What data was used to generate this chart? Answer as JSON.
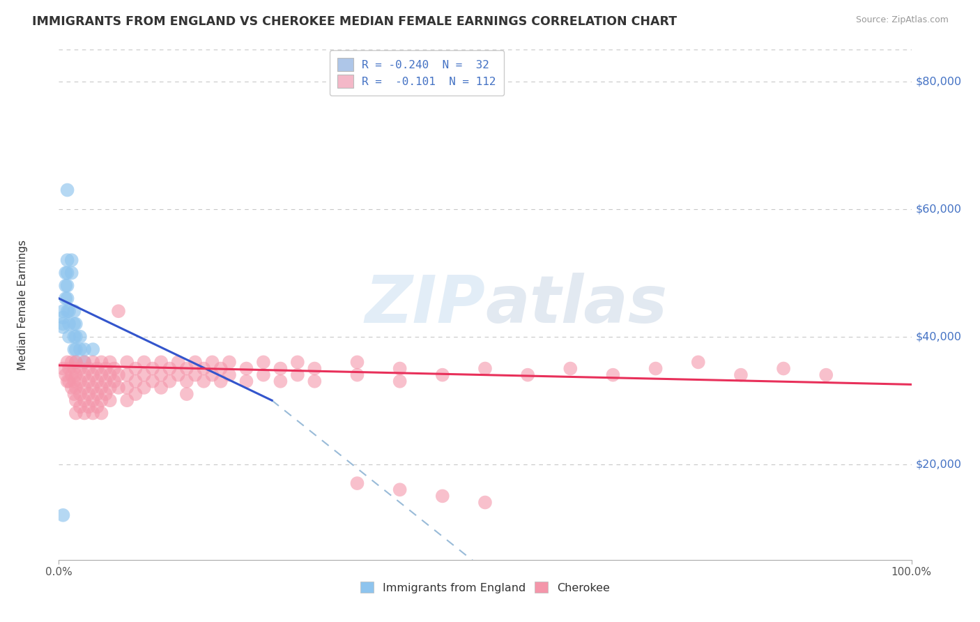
{
  "title": "IMMIGRANTS FROM ENGLAND VS CHEROKEE MEDIAN FEMALE EARNINGS CORRELATION CHART",
  "source": "Source: ZipAtlas.com",
  "ylabel": "Median Female Earnings",
  "xlim": [
    0.0,
    1.0
  ],
  "ylim": [
    5000,
    85000
  ],
  "yticks": [
    20000,
    40000,
    60000,
    80000
  ],
  "ytick_labels": [
    "$20,000",
    "$40,000",
    "$60,000",
    "$80,000"
  ],
  "xtick_labels": [
    "0.0%",
    "100.0%"
  ],
  "legend_entries": [
    {
      "label": "R = -0.240  N =  32",
      "color": "#aec6e8"
    },
    {
      "label": "R =  -0.101  N = 112",
      "color": "#f4b8c8"
    }
  ],
  "watermark": "ZIPatlas",
  "background_color": "#ffffff",
  "grid_color": "#c8c8c8",
  "blue_dot_color": "#8ec4ee",
  "pink_dot_color": "#f496aa",
  "blue_line_color": "#3355cc",
  "pink_line_color": "#e8305a",
  "dashed_line_color": "#99bbd8",
  "title_color": "#333333",
  "ylabel_color": "#333333",
  "ytick_color": "#4472c4",
  "source_color": "#999999",
  "blue_line_x": [
    0.0,
    0.25
  ],
  "blue_line_y": [
    46000,
    30000
  ],
  "dashed_line_x": [
    0.25,
    0.55
  ],
  "dashed_line_y": [
    30000,
    -2000
  ],
  "pink_line_x": [
    0.0,
    1.0
  ],
  "pink_line_y": [
    35500,
    32500
  ],
  "blue_dots": [
    [
      0.005,
      44000
    ],
    [
      0.005,
      43000
    ],
    [
      0.005,
      42000
    ],
    [
      0.005,
      41500
    ],
    [
      0.008,
      50000
    ],
    [
      0.008,
      48000
    ],
    [
      0.008,
      46000
    ],
    [
      0.01,
      52000
    ],
    [
      0.01,
      50000
    ],
    [
      0.01,
      48000
    ],
    [
      0.01,
      46000
    ],
    [
      0.01,
      44000
    ],
    [
      0.012,
      44000
    ],
    [
      0.012,
      42000
    ],
    [
      0.012,
      40000
    ],
    [
      0.015,
      52000
    ],
    [
      0.015,
      50000
    ],
    [
      0.018,
      44000
    ],
    [
      0.018,
      42000
    ],
    [
      0.018,
      40000
    ],
    [
      0.018,
      38000
    ],
    [
      0.02,
      42000
    ],
    [
      0.02,
      40000
    ],
    [
      0.02,
      38000
    ],
    [
      0.02,
      36000
    ],
    [
      0.025,
      40000
    ],
    [
      0.025,
      38000
    ],
    [
      0.03,
      38000
    ],
    [
      0.03,
      36000
    ],
    [
      0.04,
      38000
    ],
    [
      0.005,
      12000
    ],
    [
      0.01,
      63000
    ]
  ],
  "pink_dots": [
    [
      0.005,
      35000
    ],
    [
      0.008,
      34000
    ],
    [
      0.01,
      36000
    ],
    [
      0.01,
      33000
    ],
    [
      0.012,
      35000
    ],
    [
      0.012,
      33000
    ],
    [
      0.015,
      36000
    ],
    [
      0.015,
      34000
    ],
    [
      0.015,
      32000
    ],
    [
      0.018,
      35000
    ],
    [
      0.018,
      33000
    ],
    [
      0.018,
      31000
    ],
    [
      0.02,
      36000
    ],
    [
      0.02,
      34000
    ],
    [
      0.02,
      32000
    ],
    [
      0.02,
      30000
    ],
    [
      0.02,
      28000
    ],
    [
      0.025,
      35000
    ],
    [
      0.025,
      33000
    ],
    [
      0.025,
      31000
    ],
    [
      0.025,
      29000
    ],
    [
      0.03,
      36000
    ],
    [
      0.03,
      34000
    ],
    [
      0.03,
      32000
    ],
    [
      0.03,
      30000
    ],
    [
      0.03,
      28000
    ],
    [
      0.035,
      35000
    ],
    [
      0.035,
      33000
    ],
    [
      0.035,
      31000
    ],
    [
      0.035,
      29000
    ],
    [
      0.04,
      36000
    ],
    [
      0.04,
      34000
    ],
    [
      0.04,
      32000
    ],
    [
      0.04,
      30000
    ],
    [
      0.04,
      28000
    ],
    [
      0.045,
      35000
    ],
    [
      0.045,
      33000
    ],
    [
      0.045,
      31000
    ],
    [
      0.045,
      29000
    ],
    [
      0.05,
      36000
    ],
    [
      0.05,
      34000
    ],
    [
      0.05,
      32000
    ],
    [
      0.05,
      30000
    ],
    [
      0.05,
      28000
    ],
    [
      0.055,
      35000
    ],
    [
      0.055,
      33000
    ],
    [
      0.055,
      31000
    ],
    [
      0.06,
      36000
    ],
    [
      0.06,
      34000
    ],
    [
      0.06,
      32000
    ],
    [
      0.06,
      30000
    ],
    [
      0.065,
      35000
    ],
    [
      0.065,
      33000
    ],
    [
      0.07,
      44000
    ],
    [
      0.07,
      34000
    ],
    [
      0.07,
      32000
    ],
    [
      0.08,
      36000
    ],
    [
      0.08,
      34000
    ],
    [
      0.08,
      32000
    ],
    [
      0.08,
      30000
    ],
    [
      0.09,
      35000
    ],
    [
      0.09,
      33000
    ],
    [
      0.09,
      31000
    ],
    [
      0.1,
      36000
    ],
    [
      0.1,
      34000
    ],
    [
      0.1,
      32000
    ],
    [
      0.11,
      35000
    ],
    [
      0.11,
      33000
    ],
    [
      0.12,
      36000
    ],
    [
      0.12,
      34000
    ],
    [
      0.12,
      32000
    ],
    [
      0.13,
      35000
    ],
    [
      0.13,
      33000
    ],
    [
      0.14,
      36000
    ],
    [
      0.14,
      34000
    ],
    [
      0.15,
      35000
    ],
    [
      0.15,
      33000
    ],
    [
      0.15,
      31000
    ],
    [
      0.16,
      36000
    ],
    [
      0.16,
      34000
    ],
    [
      0.17,
      35000
    ],
    [
      0.17,
      33000
    ],
    [
      0.18,
      36000
    ],
    [
      0.18,
      34000
    ],
    [
      0.19,
      35000
    ],
    [
      0.19,
      33000
    ],
    [
      0.2,
      36000
    ],
    [
      0.2,
      34000
    ],
    [
      0.22,
      35000
    ],
    [
      0.22,
      33000
    ],
    [
      0.24,
      36000
    ],
    [
      0.24,
      34000
    ],
    [
      0.26,
      35000
    ],
    [
      0.26,
      33000
    ],
    [
      0.28,
      36000
    ],
    [
      0.28,
      34000
    ],
    [
      0.3,
      35000
    ],
    [
      0.3,
      33000
    ],
    [
      0.35,
      36000
    ],
    [
      0.35,
      34000
    ],
    [
      0.4,
      35000
    ],
    [
      0.4,
      33000
    ],
    [
      0.45,
      34000
    ],
    [
      0.5,
      35000
    ],
    [
      0.55,
      34000
    ],
    [
      0.6,
      35000
    ],
    [
      0.65,
      34000
    ],
    [
      0.7,
      35000
    ],
    [
      0.75,
      36000
    ],
    [
      0.8,
      34000
    ],
    [
      0.85,
      35000
    ],
    [
      0.9,
      34000
    ],
    [
      0.35,
      17000
    ],
    [
      0.4,
      16000
    ],
    [
      0.45,
      15000
    ],
    [
      0.5,
      14000
    ]
  ]
}
